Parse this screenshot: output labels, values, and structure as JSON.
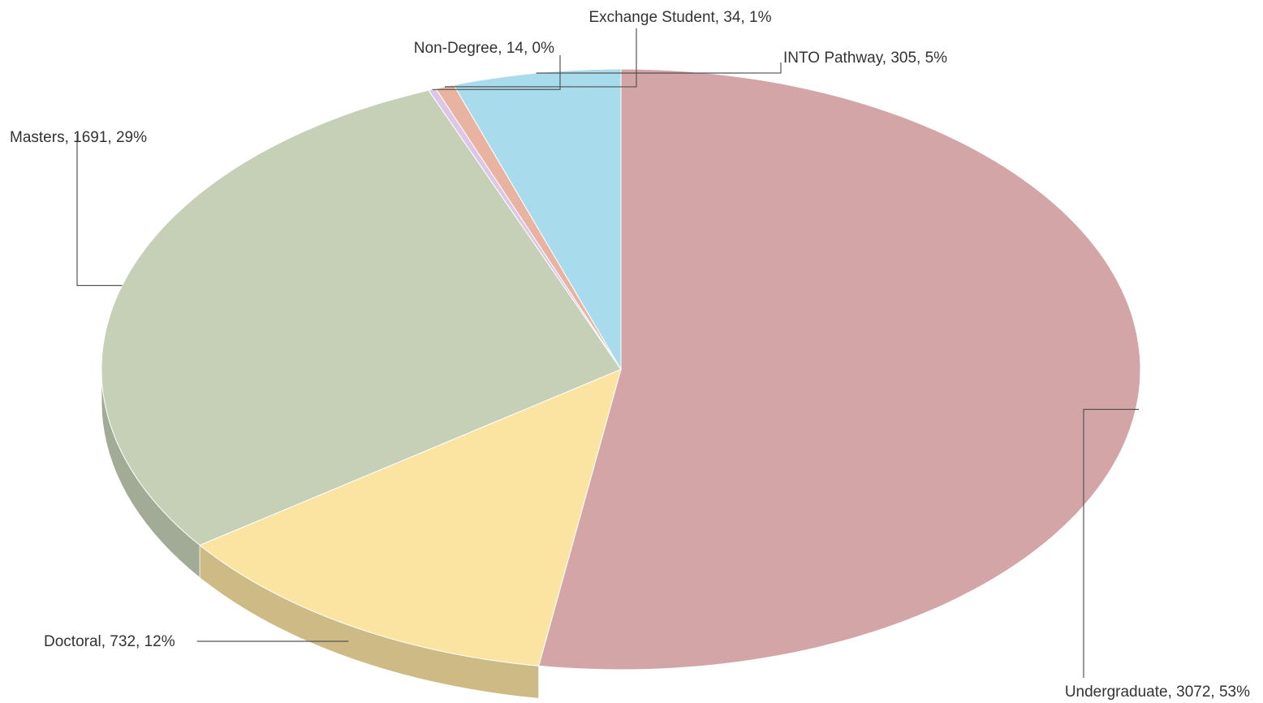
{
  "chart_data": {
    "type": "pie",
    "style": "3d",
    "title": "",
    "slices": [
      {
        "category": "Undergraduate",
        "value": 3072,
        "percent": "53%",
        "label": "Undergraduate, 3072, 53%",
        "color": "#d3a5a6"
      },
      {
        "category": "Doctoral",
        "value": 732,
        "percent": "12%",
        "label": "Doctoral, 732, 12%",
        "color": "#fbe3a2"
      },
      {
        "category": "Masters",
        "value": 1691,
        "percent": "29%",
        "label": "Masters, 1691, 29%",
        "color": "#c5d0b6"
      },
      {
        "category": "Non-Degree",
        "value": 14,
        "percent": "0%",
        "label": "Non-Degree, 14, 0%",
        "color": "#ddc6e6"
      },
      {
        "category": "Exchange Student",
        "value": 34,
        "percent": "1%",
        "label": "Exchange Student, 34, 1%",
        "color": "#e8b3a0"
      },
      {
        "category": "INTO Pathway",
        "value": 305,
        "percent": "5%",
        "label": "INTO Pathway, 305, 5%",
        "color": "#a8dced"
      }
    ]
  }
}
